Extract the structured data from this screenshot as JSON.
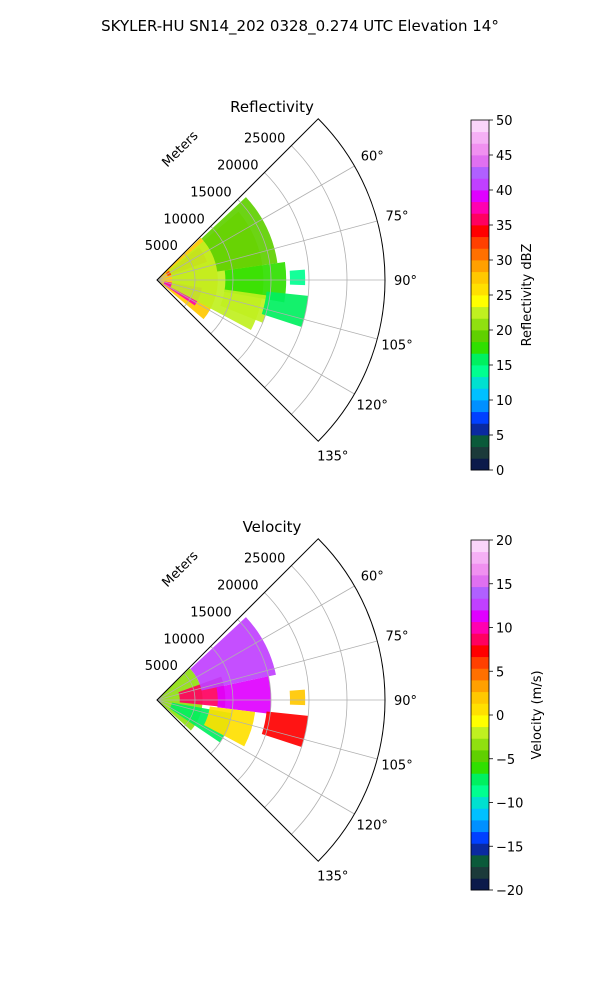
{
  "figure": {
    "title": "SKYLER-HU  SN14_202  0328_0.274 UTC Elevation 14°"
  },
  "chart_data": [
    {
      "type": "heatmap",
      "title": "Reflectivity",
      "projection": "polar-sector",
      "radial_label": "Meters",
      "radial_ticks": [
        5000,
        10000,
        15000,
        20000,
        25000
      ],
      "radial_tick_labels": [
        "5000",
        "10000",
        "15000",
        "20000",
        "25000"
      ],
      "radial_lim": [
        0,
        30000
      ],
      "angle_range_deg": [
        45,
        135
      ],
      "angle_ticks_deg": [
        60,
        75,
        90,
        105,
        120,
        135
      ],
      "angle_tick_labels": [
        "60°",
        "75°",
        "90°",
        "105°",
        "120°",
        "135°"
      ],
      "grid": true,
      "colorbar": {
        "label": "Reflectivity dBZ",
        "vmin": 0,
        "vmax": 50,
        "ticks": [
          0,
          5,
          10,
          15,
          20,
          25,
          30,
          35,
          40,
          45,
          50
        ],
        "tick_labels": [
          "0",
          "5",
          "10",
          "15",
          "20",
          "25",
          "30",
          "35",
          "40",
          "45",
          "50"
        ],
        "colors": [
          "#0b1a4a",
          "#1b3a3a",
          "#0a5a3a",
          "#0a2aa0",
          "#0040ff",
          "#0090ff",
          "#00c0ff",
          "#00e0d0",
          "#00ff90",
          "#00f060",
          "#30e000",
          "#60d000",
          "#90e010",
          "#c0f020",
          "#ffff00",
          "#ffe000",
          "#ffc800",
          "#ffa000",
          "#ff7000",
          "#ff4000",
          "#ff0000",
          "#ff0060",
          "#ff00b0",
          "#e000ff",
          "#c040ff",
          "#b060ff",
          "#e070f0",
          "#f090f0",
          "#f5b0f5",
          "#fbd5fb"
        ]
      },
      "regions": [
        {
          "r_range": [
            0,
            8000
          ],
          "az_range": [
            46,
            130
          ],
          "value": 27
        },
        {
          "r_range": [
            1000,
            6000
          ],
          "az_range": [
            100,
            124
          ],
          "value": 37
        },
        {
          "r_range": [
            1500,
            7000
          ],
          "az_range": [
            52,
            70
          ],
          "value": 33
        },
        {
          "r_range": [
            2000,
            14000
          ],
          "az_range": [
            50,
            118
          ],
          "value": 23
        },
        {
          "r_range": [
            8000,
            16000
          ],
          "az_range": [
            47,
            82
          ],
          "value": 19
        },
        {
          "r_range": [
            9000,
            17000
          ],
          "az_range": [
            82,
            100
          ],
          "value": 18
        },
        {
          "r_range": [
            9000,
            15000
          ],
          "az_range": [
            98,
            112
          ],
          "value": 22
        },
        {
          "r_range": [
            14500,
            20000
          ],
          "az_range": [
            96,
            108
          ],
          "value": 16
        },
        {
          "r_range": [
            17500,
            19500
          ],
          "az_range": [
            86,
            92
          ],
          "value": 14
        }
      ]
    },
    {
      "type": "heatmap",
      "title": "Velocity",
      "projection": "polar-sector",
      "radial_label": "Meters",
      "radial_ticks": [
        5000,
        10000,
        15000,
        20000,
        25000
      ],
      "radial_tick_labels": [
        "5000",
        "10000",
        "15000",
        "20000",
        "25000"
      ],
      "radial_lim": [
        0,
        30000
      ],
      "angle_range_deg": [
        45,
        135
      ],
      "angle_ticks_deg": [
        60,
        75,
        90,
        105,
        120,
        135
      ],
      "angle_tick_labels": [
        "60°",
        "75°",
        "90°",
        "105°",
        "120°",
        "135°"
      ],
      "grid": true,
      "colorbar": {
        "label": "Velocity (m/s)",
        "vmin": -20,
        "vmax": 20,
        "ticks": [
          -20,
          -15,
          -10,
          -5,
          0,
          5,
          10,
          15,
          20
        ],
        "tick_labels": [
          "−20",
          "−15",
          "−10",
          "−5",
          "0",
          "5",
          "10",
          "15",
          "20"
        ],
        "colors": [
          "#0b1a4a",
          "#1b3a3a",
          "#0a5a3a",
          "#0a2aa0",
          "#0040ff",
          "#0090ff",
          "#00c0ff",
          "#00e0d0",
          "#00ff90",
          "#00f060",
          "#30e000",
          "#60d000",
          "#90e010",
          "#c0f020",
          "#ffff00",
          "#ffe000",
          "#ffc800",
          "#ffa000",
          "#ff7000",
          "#ff4000",
          "#ff0000",
          "#ff0060",
          "#ff00b0",
          "#e000ff",
          "#c040ff",
          "#b060ff",
          "#e070f0",
          "#f090f0",
          "#f5b0f5",
          "#fbd5fb"
        ]
      },
      "regions": [
        {
          "r_range": [
            0,
            6000
          ],
          "az_range": [
            46,
            132
          ],
          "value": -4
        },
        {
          "r_range": [
            2000,
            10000
          ],
          "az_range": [
            100,
            124
          ],
          "value": -7
        },
        {
          "r_range": [
            3000,
            9000
          ],
          "az_range": [
            70,
            96
          ],
          "value": 9
        },
        {
          "r_range": [
            6000,
            16000
          ],
          "az_range": [
            47,
            78
          ],
          "value": 13
        },
        {
          "r_range": [
            8000,
            15000
          ],
          "az_range": [
            78,
            97
          ],
          "value": 11
        },
        {
          "r_range": [
            7000,
            13000
          ],
          "az_range": [
            97,
            118
          ],
          "value": 1
        },
        {
          "r_range": [
            14500,
            20000
          ],
          "az_range": [
            96,
            108
          ],
          "value": 7
        },
        {
          "r_range": [
            17500,
            19500
          ],
          "az_range": [
            86,
            92
          ],
          "value": 2
        }
      ]
    }
  ]
}
